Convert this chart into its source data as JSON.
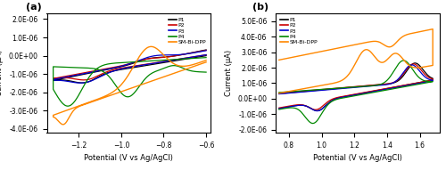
{
  "panel_a": {
    "label": "(a)",
    "xlim": [
      -1.35,
      -0.58
    ],
    "ylim": [
      -4.2e-06,
      2.3e-06
    ],
    "xlabel": "Potential (V vs Ag/AgCl)",
    "ylabel": "Current (μA)",
    "yticks": [
      -4e-06,
      -3e-06,
      -2e-06,
      -1e-06,
      0.0,
      1e-06,
      2e-06
    ],
    "xticks": [
      -1.2,
      -1.0,
      -0.8,
      -0.6
    ],
    "colors": {
      "P1": "#000000",
      "P2": "#cc0000",
      "P3": "#0000cc",
      "P4": "#008800",
      "SM-Bi-DPP": "#ff8800"
    }
  },
  "panel_b": {
    "label": "(b)",
    "xlim": [
      0.72,
      1.72
    ],
    "ylim": [
      -2.2e-06,
      5.5e-06
    ],
    "xlabel": "Potential (V vs Ag/AgCl)",
    "ylabel": "Current (μA)",
    "yticks": [
      -2e-06,
      -1e-06,
      0.0,
      1e-06,
      2e-06,
      3e-06,
      4e-06,
      5e-06
    ],
    "xticks": [
      0.8,
      1.0,
      1.2,
      1.4,
      1.6
    ],
    "colors": {
      "P1": "#000000",
      "P2": "#cc0000",
      "P3": "#0000cc",
      "P4": "#008800",
      "SM-Bi-DPP": "#ff8800"
    }
  }
}
